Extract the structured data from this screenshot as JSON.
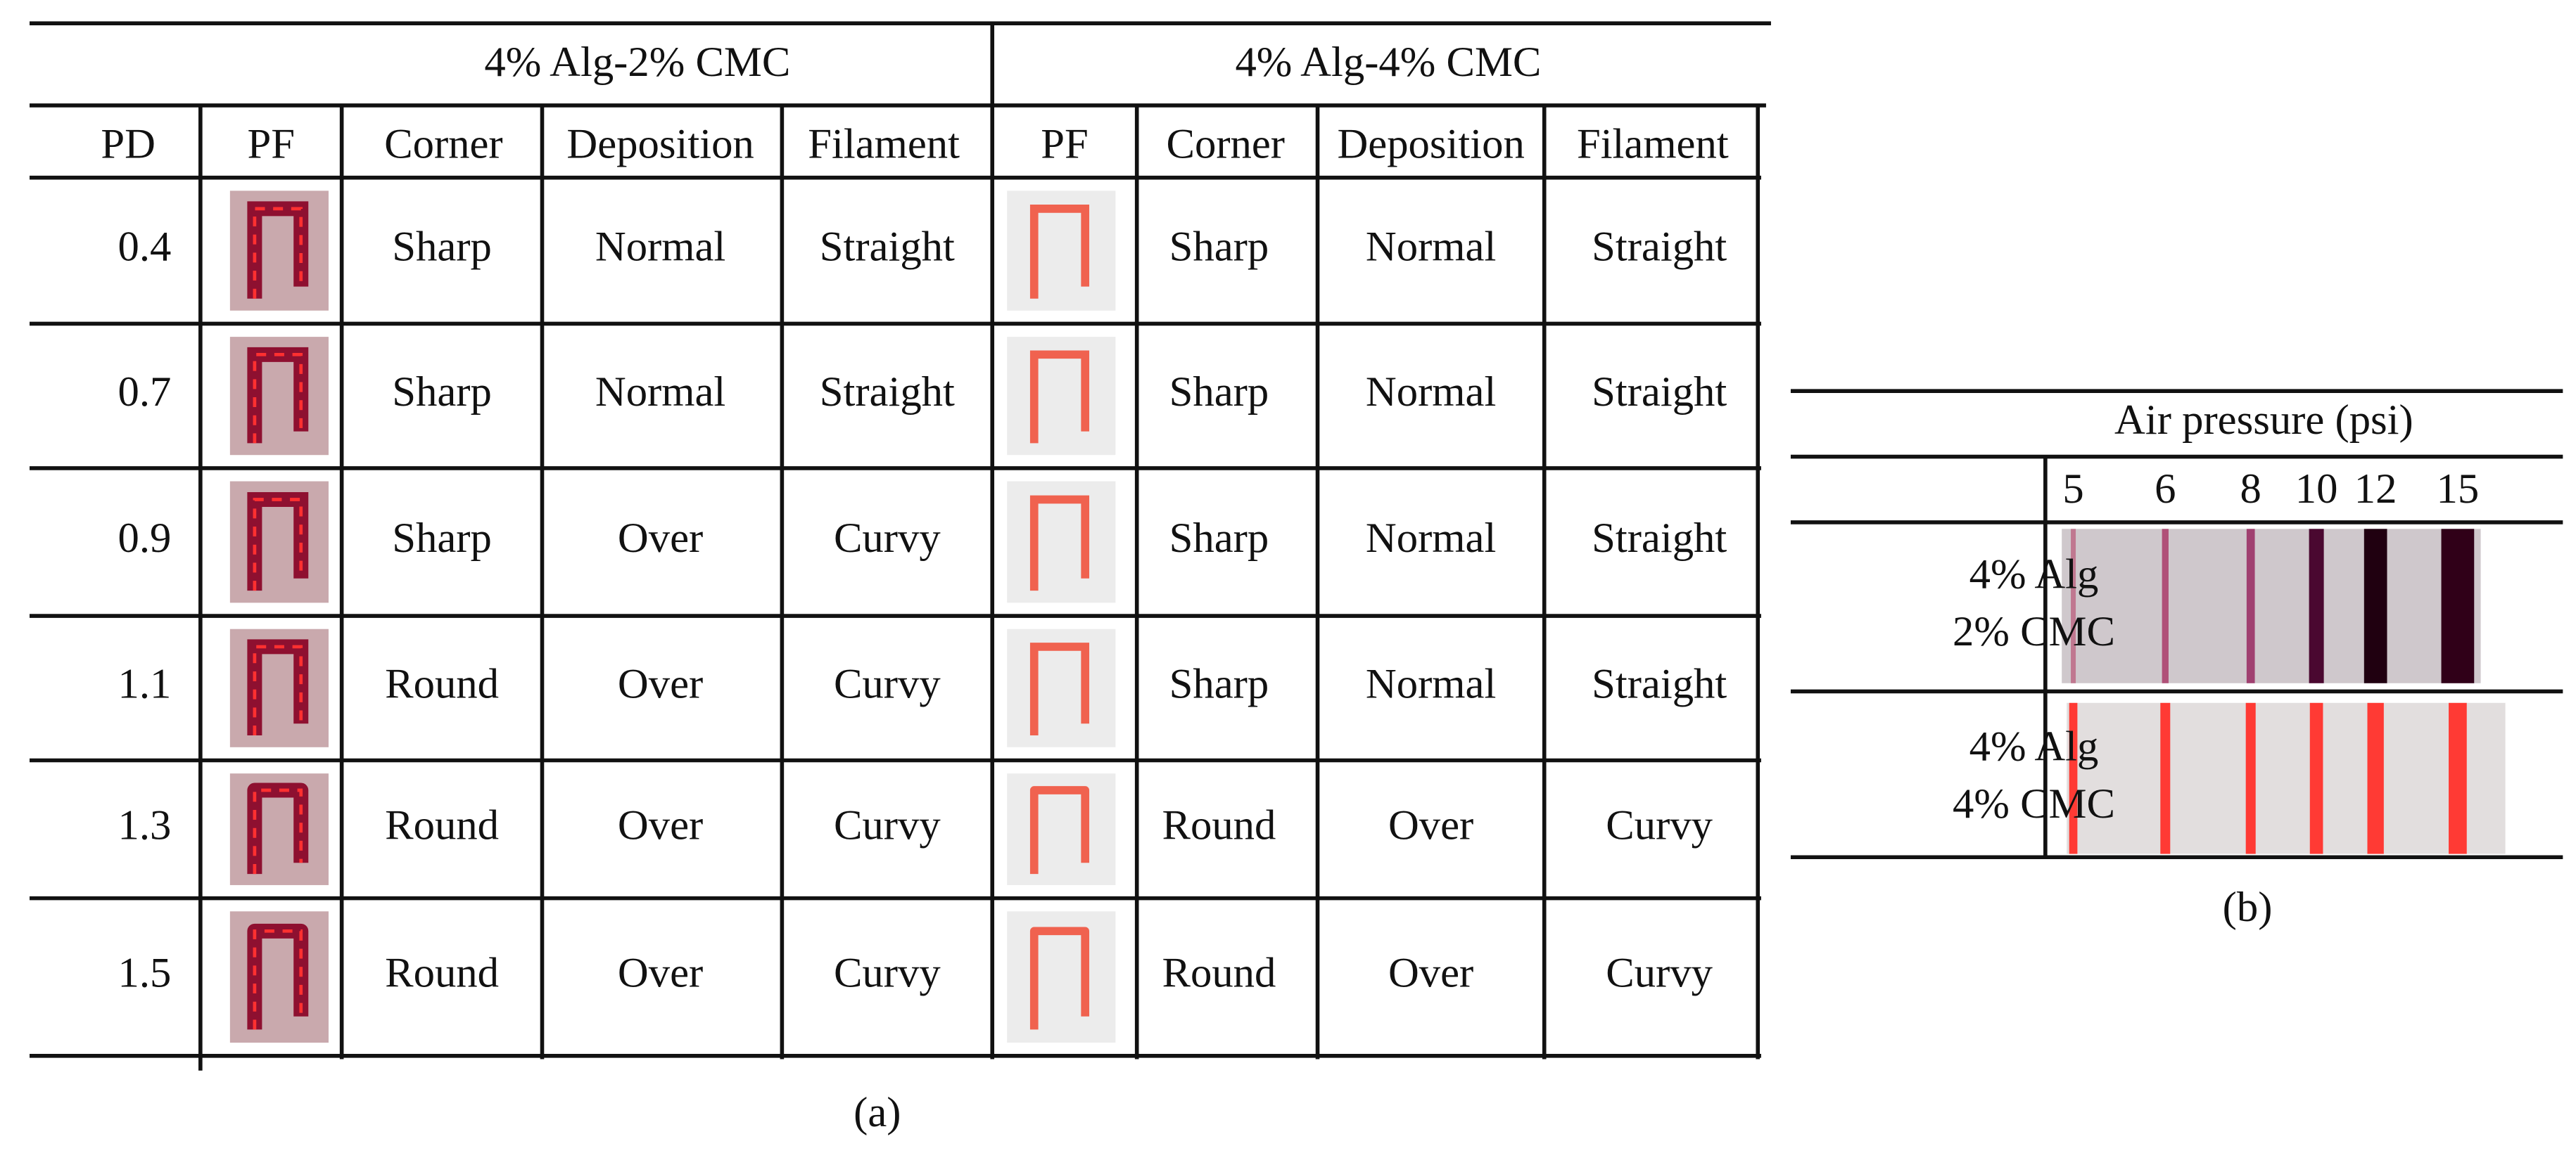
{
  "panel_a": {
    "label": "(a)",
    "groups": [
      "4% Alg-2% CMC",
      "4% Alg-4% CMC"
    ],
    "columns": [
      "PD",
      "PF",
      "Corner",
      "Deposition",
      "Filament",
      "PF",
      "Corner",
      "Deposition",
      "Filament"
    ],
    "rows": [
      [
        "0.4",
        "Sharp",
        "Normal",
        "Straight",
        "Sharp",
        "Normal",
        "Straight"
      ],
      [
        "0.7",
        "Sharp",
        "Normal",
        "Straight",
        "Sharp",
        "Normal",
        "Straight"
      ],
      [
        "0.9",
        "Sharp",
        "Over",
        "Curvy",
        "Sharp",
        "Normal",
        "Straight"
      ],
      [
        "1.1",
        "Round",
        "Over",
        "Curvy",
        "Sharp",
        "Normal",
        "Straight"
      ],
      [
        "1.3",
        "Round",
        "Over",
        "Curvy",
        "Round",
        "Over",
        "Curvy"
      ],
      [
        "1.5",
        "Round",
        "Over",
        "Curvy",
        "Round",
        "Over",
        "Curvy"
      ]
    ]
  },
  "panel_b": {
    "label": "(b)",
    "title": "Air pressure (psi)",
    "pressures": [
      "5",
      "6",
      "8",
      "10",
      "12",
      "15"
    ],
    "rows": [
      [
        "4% Alg",
        "2% CMC"
      ],
      [
        "4% Alg",
        "4% CMC"
      ]
    ]
  }
}
